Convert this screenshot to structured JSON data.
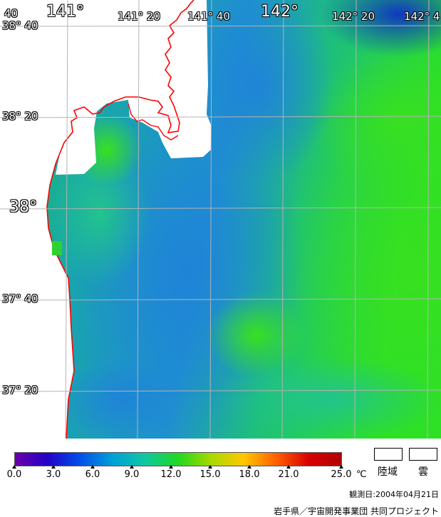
{
  "map": {
    "lon_labels": [
      "141°",
      "141° 20",
      "141° 40",
      "142°",
      "142° 20",
      "142° 4"
    ],
    "lat_labels": [
      "38° 40",
      "38° 20",
      "38°",
      "37° 40",
      "37° 20"
    ],
    "corner_label": "40",
    "colors": {
      "sea_blue": "#1f8fd0",
      "sea_teal": "#18b08a",
      "sea_green": "#2ad828",
      "deep_blue": "#1048c8",
      "land": "#ffffff",
      "coast": "#ff0000",
      "grid": "#b0b0b0"
    }
  },
  "colorbar": {
    "ticks": [
      "0.0",
      "3.0",
      "6.0",
      "9.0",
      "12.0",
      "15.0",
      "18.0",
      "21.0",
      "25.0"
    ],
    "unit": "℃",
    "colors": [
      "#6a00a8",
      "#2200c8",
      "#0050e8",
      "#00a0d8",
      "#10c8a0",
      "#20d820",
      "#a8d800",
      "#ffc800",
      "#ff6000",
      "#d80000",
      "#b00000"
    ]
  },
  "legend": {
    "land_label": "陸域",
    "cloud_label": "雲"
  },
  "date_text": "観測日:2004年04月21日",
  "credit_text": "岩手県／宇宙開発事業団 共同プロジェクト"
}
